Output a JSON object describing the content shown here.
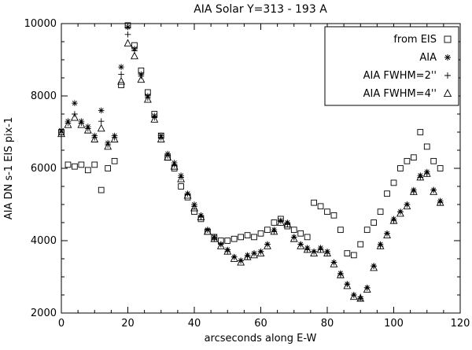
{
  "figure": {
    "background": "#ffffff",
    "foreground": "#000000"
  },
  "chart_data": {
    "type": "scatter",
    "title": "AIA Solar Y=313 - 193 A",
    "xlabel": "arcseconds along E-W",
    "ylabel": "AIA DN s-1 EIS pix-1",
    "xlim": [
      0,
      120
    ],
    "ylim": [
      2000,
      10000
    ],
    "xticks": [
      0,
      20,
      40,
      60,
      80,
      100,
      120
    ],
    "yticks": [
      2000,
      4000,
      6000,
      8000,
      10000
    ],
    "x_minor_step": 5,
    "y_minor_step": 500,
    "grid": false,
    "legend_position": "top-right",
    "x": [
      0,
      2,
      4,
      6,
      8,
      10,
      12,
      14,
      16,
      18,
      20,
      22,
      24,
      26,
      28,
      30,
      32,
      34,
      36,
      38,
      40,
      42,
      44,
      46,
      48,
      50,
      52,
      54,
      56,
      58,
      60,
      62,
      64,
      66,
      68,
      70,
      72,
      74,
      76,
      78,
      80,
      82,
      84,
      86,
      88,
      90,
      92,
      94,
      96,
      98,
      100,
      102,
      104,
      106,
      108,
      110,
      112,
      114
    ],
    "series": [
      {
        "name": "from EIS",
        "symbol": "square",
        "values": [
          7000,
          6100,
          6050,
          6100,
          5950,
          6100,
          5400,
          6000,
          6200,
          8300,
          9950,
          9400,
          8700,
          8100,
          7500,
          6900,
          6300,
          6000,
          5500,
          5200,
          4800,
          4600,
          4250,
          4100,
          4000,
          4000,
          4050,
          4100,
          4150,
          4100,
          4200,
          4300,
          4500,
          4600,
          4400,
          4300,
          4200,
          4100,
          5050,
          4950,
          4800,
          4700,
          4300,
          3650,
          3600,
          3900,
          4300,
          4500,
          4800,
          5300,
          5600,
          6000,
          6200,
          6300,
          7000,
          6600,
          6200,
          6000
        ]
      },
      {
        "name": "AIA",
        "symbol": "asterisk",
        "values": [
          7050,
          7300,
          7800,
          7300,
          7150,
          6900,
          7600,
          6700,
          6900,
          8800,
          9900,
          9300,
          8600,
          8000,
          7450,
          6900,
          6400,
          6150,
          5800,
          5300,
          5000,
          4700,
          4300,
          4100,
          3900,
          3750,
          3550,
          3450,
          3600,
          3650,
          3700,
          3900,
          4300,
          4550,
          4500,
          4100,
          3900,
          3800,
          3700,
          3800,
          3700,
          3400,
          3100,
          2800,
          2500,
          2400,
          2700,
          3300,
          3900,
          4200,
          4600,
          4800,
          5000,
          5400,
          5800,
          5900,
          5400,
          5100
        ]
      },
      {
        "name": "AIA FWHM=2''",
        "symbol": "plus",
        "values": [
          7000,
          7250,
          7500,
          7250,
          7100,
          6850,
          7300,
          6650,
          6850,
          8600,
          9700,
          9250,
          8550,
          7950,
          7400,
          6850,
          6350,
          6100,
          5750,
          5300,
          4950,
          4650,
          4300,
          4050,
          3900,
          3700,
          3550,
          3450,
          3550,
          3650,
          3700,
          3900,
          4250,
          4550,
          4450,
          4100,
          3900,
          3750,
          3700,
          3750,
          3650,
          3400,
          3050,
          2800,
          2500,
          2450,
          2700,
          3300,
          3850,
          4200,
          4550,
          4800,
          5000,
          5350,
          5750,
          5850,
          5400,
          5050
        ]
      },
      {
        "name": "AIA FWHM=4''",
        "symbol": "triangle",
        "values": [
          6950,
          7200,
          7400,
          7200,
          7050,
          6800,
          7100,
          6600,
          6800,
          8400,
          9450,
          9100,
          8450,
          7900,
          7350,
          6800,
          6300,
          6050,
          5700,
          5250,
          4900,
          4650,
          4250,
          4050,
          3850,
          3700,
          3500,
          3400,
          3550,
          3600,
          3650,
          3850,
          4250,
          4500,
          4450,
          4050,
          3850,
          3750,
          3650,
          3750,
          3650,
          3350,
          3050,
          2750,
          2450,
          2400,
          2650,
          3250,
          3850,
          4150,
          4550,
          4750,
          4950,
          5350,
          5750,
          5850,
          5350,
          5050
        ]
      }
    ]
  }
}
